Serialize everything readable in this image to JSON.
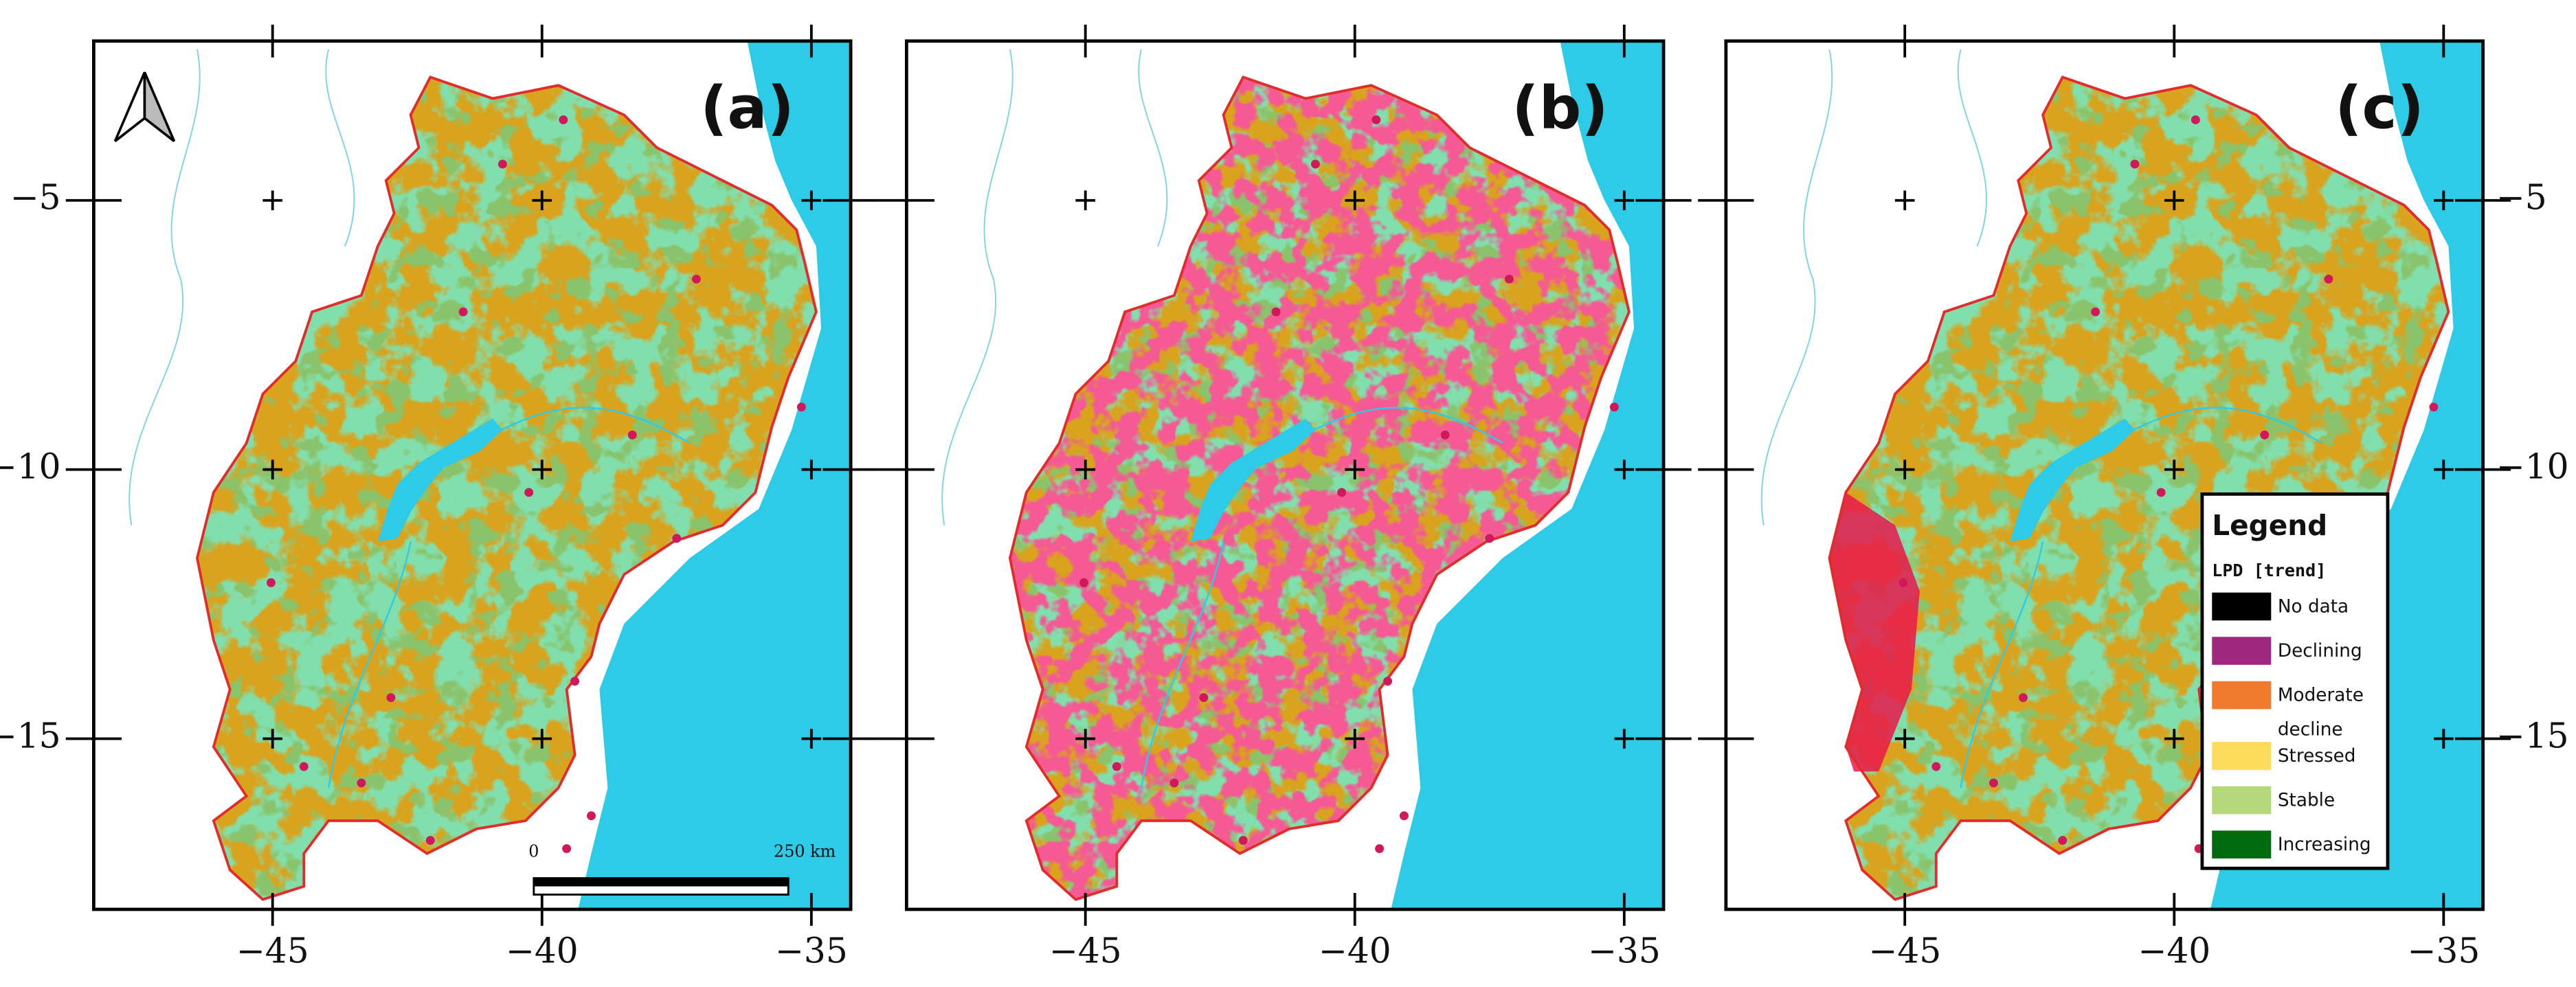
{
  "panels": [
    {
      "label": "(a)"
    },
    {
      "label": "(b)"
    },
    {
      "label": "(c)"
    }
  ],
  "map": {
    "xlim": [
      -48.32,
      -34.27
    ],
    "ylim": [
      -18.17,
      -2.04
    ],
    "xticks": [
      {
        "value": -45,
        "label": "−45"
      },
      {
        "value": -40,
        "label": "−40"
      },
      {
        "value": -35,
        "label": "−35"
      }
    ],
    "yticks": [
      {
        "value": -5,
        "label": "−5"
      },
      {
        "value": -10,
        "label": "−10"
      },
      {
        "value": -15,
        "label": "−15"
      }
    ]
  },
  "scale_bar": {
    "start_label": "0",
    "end_label": "250 km"
  },
  "legend": {
    "title": "Legend",
    "subtitle": "LPD [trend]",
    "items": [
      {
        "name": "No data",
        "color": "#000000"
      },
      {
        "name": "Declining",
        "color": "#a0287e"
      },
      {
        "name": "Moderate decline",
        "color": "#f07b2e"
      },
      {
        "name": "Stressed",
        "color": "#fddc5c"
      },
      {
        "name": "Stable",
        "color": "#b5d97a"
      },
      {
        "name": "Increasing",
        "color": "#006b0f"
      }
    ]
  }
}
